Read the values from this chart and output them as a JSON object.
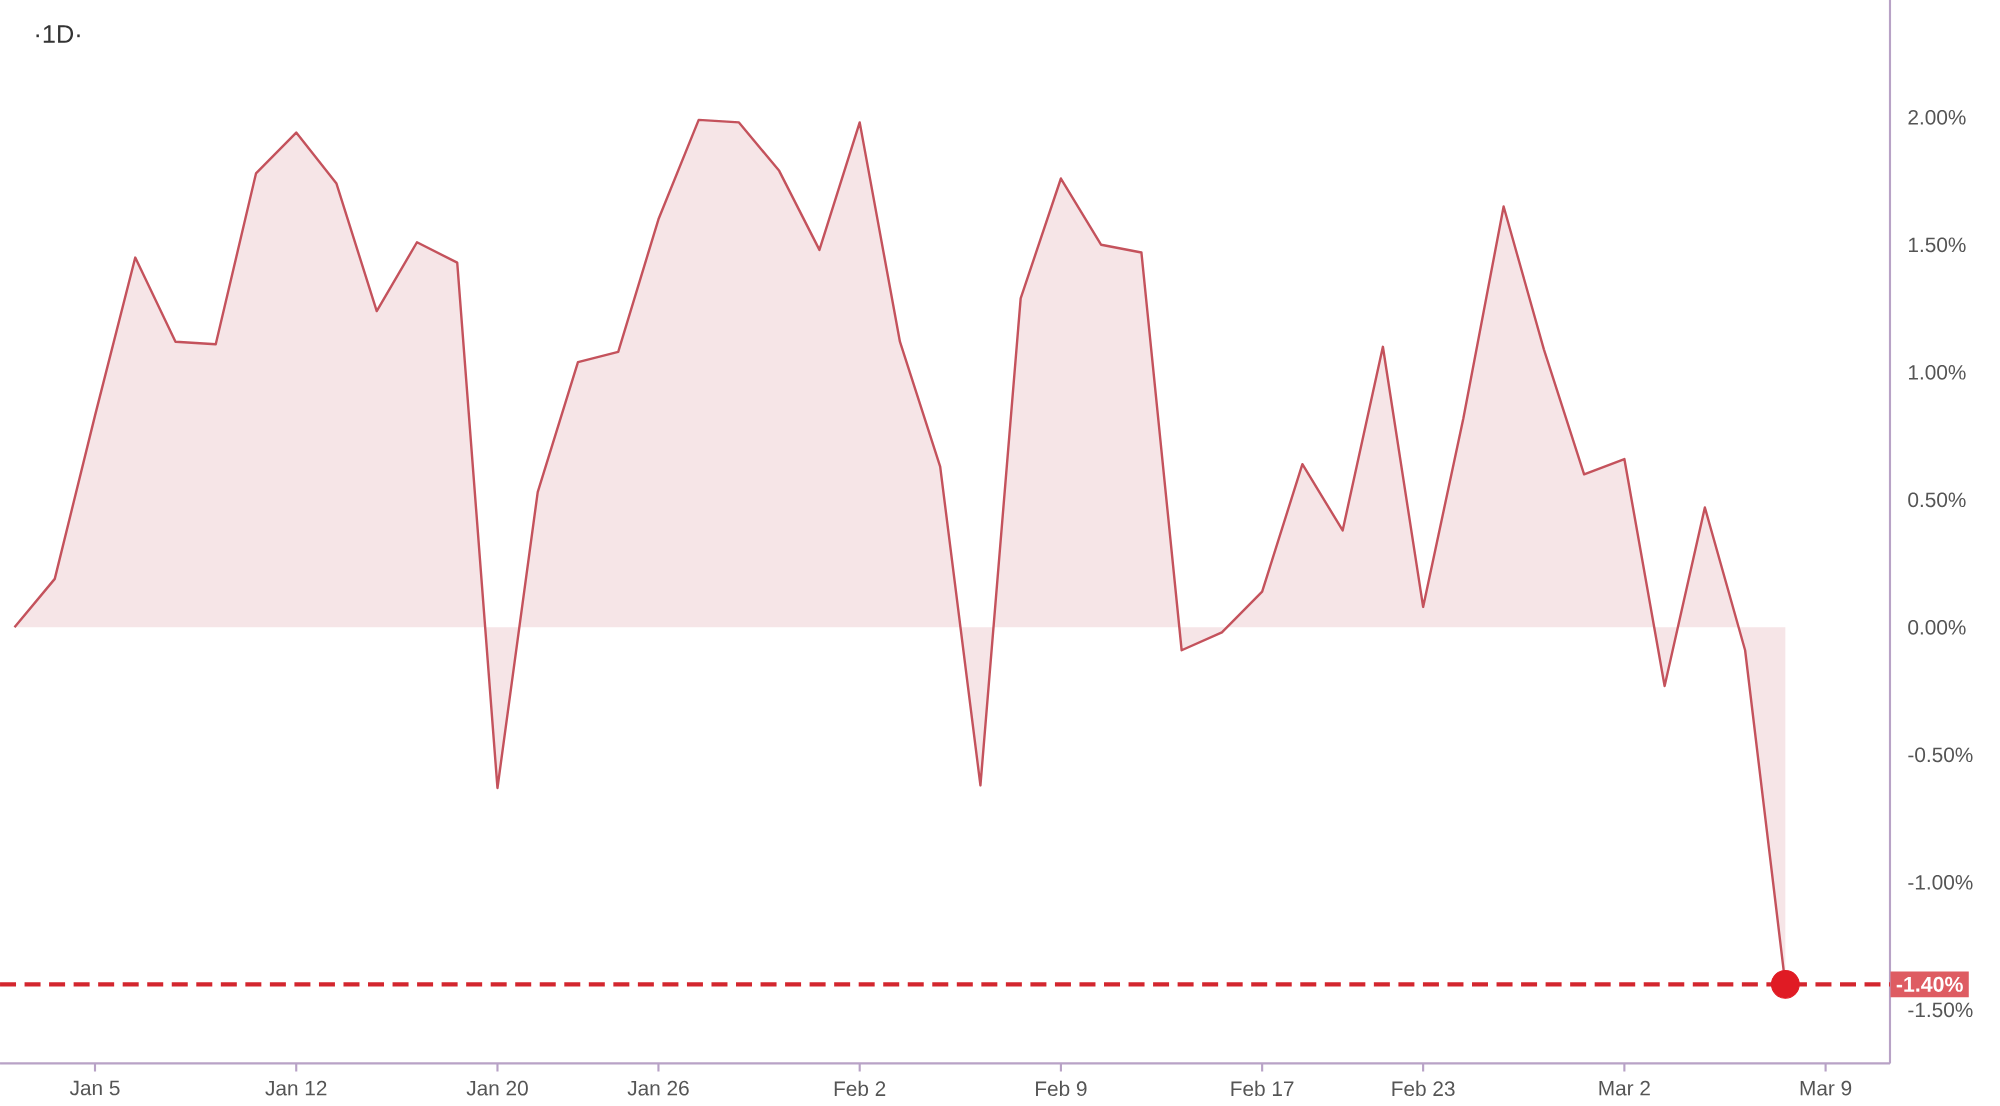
{
  "chart_data": {
    "type": "area",
    "title": "·1D·",
    "categories": [
      null,
      null,
      "Jan 5",
      null,
      null,
      null,
      null,
      "Jan 12",
      null,
      null,
      null,
      null,
      "Jan 20",
      null,
      null,
      null,
      "Jan 26",
      null,
      null,
      null,
      null,
      "Feb 2",
      null,
      null,
      null,
      null,
      "Feb 9",
      null,
      null,
      null,
      null,
      "Feb 17",
      null,
      null,
      null,
      "Feb 23",
      null,
      null,
      null,
      null,
      "Mar 2",
      null,
      null,
      null,
      null,
      "Mar 9"
    ],
    "series": [
      {
        "color": "#c4525c",
        "values": [
          0.0,
          0.19,
          0.83,
          1.45,
          1.12,
          1.11,
          1.78,
          1.94,
          1.74,
          1.24,
          1.51,
          1.43,
          -0.63,
          0.53,
          1.04,
          1.08,
          1.6,
          1.99,
          1.98,
          1.79,
          1.48,
          1.98,
          1.12,
          0.63,
          -0.62,
          1.29,
          1.76,
          1.5,
          1.47,
          -0.09,
          -0.02,
          0.14,
          0.64,
          0.38,
          1.1,
          0.08,
          0.82,
          1.65,
          1.09,
          0.6,
          0.66,
          -0.23,
          0.47,
          -0.09,
          -1.4,
          null
        ]
      },
      {
        "type": "scatter",
        "color": "#e01b24",
        "marker": "circle",
        "values": [
          null,
          null,
          null,
          null,
          null,
          null,
          null,
          null,
          null,
          null,
          null,
          null,
          null,
          null,
          null,
          null,
          null,
          null,
          null,
          null,
          null,
          null,
          null,
          null,
          null,
          null,
          null,
          null,
          null,
          null,
          null,
          null,
          null,
          null,
          null,
          null,
          null,
          null,
          null,
          null,
          null,
          null,
          null,
          null,
          -1.4,
          null
        ]
      }
    ],
    "ylim": [
      -1.71,
      2.46
    ],
    "yticks": [
      {
        "value": 2,
        "label": "2.00%"
      },
      {
        "value": 1.5,
        "label": "1.50%"
      },
      {
        "value": 1,
        "label": "1.00%"
      },
      {
        "value": 0.5,
        "label": "0.50%"
      },
      {
        "value": 0,
        "label": "0.00%"
      },
      {
        "value": -0.5,
        "label": "-0.50%"
      },
      {
        "value": -1,
        "label": "-1.00%"
      },
      {
        "value": -1.5,
        "label": "-1.50%"
      }
    ],
    "ref_lines": [
      {
        "axis": "y",
        "value": -1.4,
        "label": "-1.40%",
        "color": "#d3262e",
        "line_style": "dashed"
      }
    ]
  }
}
